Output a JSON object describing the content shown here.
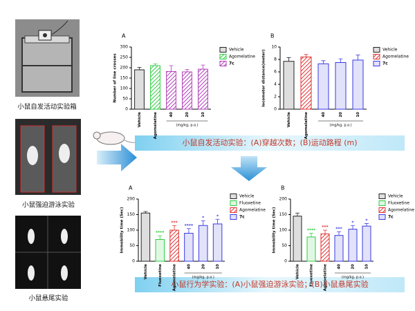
{
  "captions": [
    "小鼠自发活动实验箱",
    "小鼠强迫游泳实验",
    "小鼠悬尾实验"
  ],
  "banners": [
    "小鼠自发活动实验：(A)穿越次数；(B)运动路程 (m)",
    "小鼠行为学实验：(A)小鼠强迫游泳实验；(B)小鼠悬尾实验"
  ],
  "chart_data": [
    {
      "type": "bar",
      "title": "A",
      "y_label": "Number of line crosses",
      "group_label": "(mg/kg, p.o.)",
      "categories": [
        "Vehicle",
        "Agomelatine",
        "40",
        "20",
        "10"
      ],
      "ylim": [
        0,
        300
      ],
      "yticks": [
        0,
        50,
        100,
        150,
        200,
        250,
        300
      ],
      "series": [
        {
          "name": "Vehicle",
          "color": "#222222",
          "hatched": false,
          "values": [
            190,
            null,
            null,
            null,
            null
          ],
          "errors": [
            12,
            null,
            null,
            null,
            null
          ]
        },
        {
          "name": "Agomelatine",
          "color": "#2ecc40",
          "hatched": true,
          "values": [
            null,
            210,
            null,
            null,
            null
          ],
          "errors": [
            null,
            8,
            null,
            null,
            null
          ]
        },
        {
          "name": "7c",
          "color": "#b03cb8",
          "hatched": true,
          "values": [
            null,
            null,
            182,
            180,
            193
          ],
          "errors": [
            null,
            null,
            28,
            12,
            20
          ]
        }
      ]
    },
    {
      "type": "bar",
      "title": "B",
      "y_label": "locomotor distance(meter)",
      "group_label": "(mg/kg, p.o.)",
      "categories": [
        "Vehicle",
        "Agomelatine",
        "40",
        "20",
        "10"
      ],
      "ylim": [
        0,
        10
      ],
      "yticks": [
        0,
        2,
        4,
        6,
        8,
        10
      ],
      "series": [
        {
          "name": "Vehicle",
          "color": "#222222",
          "hatched": false,
          "values": [
            7.7,
            null,
            null,
            null,
            null
          ],
          "errors": [
            0.6,
            null,
            null,
            null,
            null
          ]
        },
        {
          "name": "Agomelatine",
          "color": "#e03030",
          "hatched": true,
          "values": [
            null,
            8.4,
            null,
            null,
            null
          ],
          "errors": [
            null,
            0.4,
            null,
            null,
            null
          ]
        },
        {
          "name": "7c",
          "color": "#3a3ae0",
          "hatched": false,
          "values": [
            null,
            null,
            7.3,
            7.5,
            7.9
          ],
          "errors": [
            null,
            null,
            0.5,
            0.6,
            0.8
          ]
        }
      ]
    },
    {
      "type": "bar",
      "title": "A",
      "y_label": "Immobility time (Sec)",
      "group_label": "(mg/kg, p.o.)",
      "categories": [
        "Vehicle",
        "Fluoxetine",
        "Agomelatine",
        "40",
        "20",
        "10"
      ],
      "ylim": [
        0,
        200
      ],
      "yticks": [
        0,
        50,
        100,
        150,
        200
      ],
      "stars": [
        null,
        "****",
        "***",
        "****",
        "*",
        "*"
      ],
      "series": [
        {
          "name": "Vehicle",
          "color": "#222222",
          "hatched": false,
          "values": [
            155,
            null,
            null,
            null,
            null,
            null
          ],
          "errors": [
            5,
            null,
            null,
            null,
            null,
            null
          ]
        },
        {
          "name": "Fluoxetine",
          "color": "#2ecc40",
          "hatched": false,
          "values": [
            null,
            70,
            null,
            null,
            null,
            null
          ],
          "errors": [
            null,
            12,
            null,
            null,
            null,
            null
          ]
        },
        {
          "name": "Agomelatine",
          "color": "#e03030",
          "hatched": true,
          "values": [
            null,
            null,
            100,
            null,
            null,
            null
          ],
          "errors": [
            null,
            null,
            15,
            null,
            null,
            null
          ]
        },
        {
          "name": "7c",
          "color": "#3a3ae0",
          "hatched": false,
          "values": [
            null,
            null,
            null,
            90,
            115,
            120
          ],
          "errors": [
            null,
            null,
            null,
            15,
            15,
            15
          ]
        }
      ]
    },
    {
      "type": "bar",
      "title": "B",
      "y_label": "Immobility time (Sec)",
      "group_label": "(mg/kg, p.o.)",
      "categories": [
        "Vehicle",
        "Fluoxetine",
        "Agomelatine",
        "40",
        "20",
        "10"
      ],
      "ylim": [
        0,
        200
      ],
      "yticks": [
        0,
        50,
        100,
        150,
        200
      ],
      "stars": [
        null,
        "****",
        "***",
        "***",
        "*",
        "*"
      ],
      "series": [
        {
          "name": "Vehicle",
          "color": "#222222",
          "hatched": false,
          "values": [
            145,
            null,
            null,
            null,
            null,
            null
          ],
          "errors": [
            10,
            null,
            null,
            null,
            null,
            null
          ]
        },
        {
          "name": "Fluoxetine",
          "color": "#2ecc40",
          "hatched": false,
          "values": [
            null,
            78,
            null,
            null,
            null,
            null
          ],
          "errors": [
            null,
            12,
            null,
            null,
            null,
            null
          ]
        },
        {
          "name": "Agomelatine",
          "color": "#e03030",
          "hatched": true,
          "values": [
            null,
            null,
            88,
            null,
            null,
            null
          ],
          "errors": [
            null,
            null,
            12,
            null,
            null,
            null
          ]
        },
        {
          "name": "7c",
          "color": "#3a3ae0",
          "hatched": false,
          "values": [
            null,
            null,
            null,
            83,
            103,
            113
          ],
          "errors": [
            null,
            null,
            null,
            12,
            12,
            8
          ]
        }
      ]
    }
  ]
}
